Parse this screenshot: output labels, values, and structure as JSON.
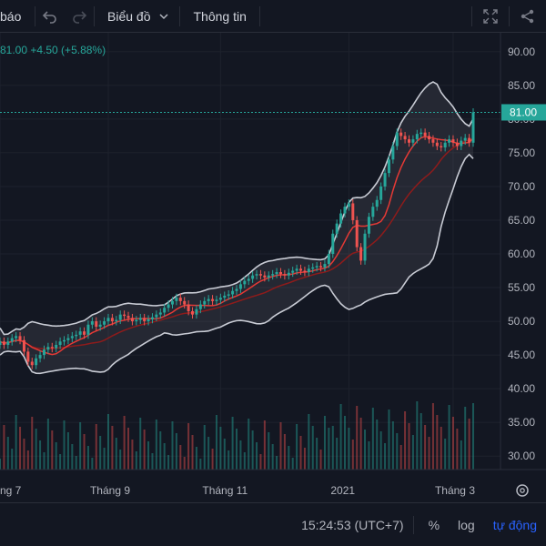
{
  "toolbar": {
    "partial_label": "báo",
    "chart_label": "Biểu đồ",
    "info_label": "Thông tin",
    "icons": [
      "undo-icon",
      "redo-icon",
      "chevron-down-icon",
      "fullscreen-icon",
      "share-icon"
    ]
  },
  "legend": {
    "text": "81.00  +4.50 (+5.88%)"
  },
  "current_price": "81.00",
  "footer": {
    "time": "15:24:53 (UTC+7)",
    "percent": "%",
    "log": "log",
    "auto": "tự động"
  },
  "colors": {
    "up": "#26a69a",
    "down": "#ef5350",
    "ma_fast": "#e53935",
    "ma_slow": "#8e1b1b",
    "band": "#c8cbd4",
    "background": "#131722",
    "accent": "#2962ff"
  },
  "chart_data": {
    "type": "candlestick",
    "ylim": [
      28,
      92
    ],
    "y_ticks": [
      "90.00",
      "85.00",
      "80.00",
      "75.00",
      "70.00",
      "65.00",
      "60.00",
      "55.00",
      "50.00",
      "45.00",
      "40.00",
      "35.00",
      "30.00"
    ],
    "y_tick_values": [
      90,
      85,
      80,
      75,
      70,
      65,
      60,
      55,
      50,
      45,
      40,
      35,
      30
    ],
    "x_ticks": [
      "ng 7",
      "Tháng 9",
      "Tháng 11",
      "2021",
      "Tháng 3"
    ],
    "x_tick_index": [
      0,
      27,
      55,
      87,
      113
    ],
    "close_prices": [
      47.0,
      46.5,
      47.0,
      47.5,
      47.8,
      47.2,
      45.5,
      44.0,
      43.5,
      44.5,
      45.0,
      45.8,
      46.2,
      46.0,
      46.5,
      47.0,
      47.2,
      47.5,
      47.8,
      48.0,
      48.5,
      48.0,
      49.5,
      50.0,
      49.2,
      49.5,
      50.0,
      50.5,
      50.0,
      50.2,
      51.0,
      50.8,
      50.5,
      50.0,
      50.2,
      50.5,
      50.0,
      50.3,
      50.6,
      51.0,
      51.3,
      52.0,
      52.5,
      53.0,
      53.5,
      53.0,
      52.5,
      51.5,
      51.0,
      51.8,
      52.5,
      53.0,
      53.3,
      53.0,
      53.2,
      53.5,
      53.8,
      54.0,
      54.5,
      54.8,
      55.5,
      56.0,
      56.3,
      56.8,
      57.0,
      56.8,
      56.5,
      56.8,
      57.0,
      57.3,
      57.0,
      56.8,
      57.2,
      57.5,
      57.8,
      57.5,
      57.3,
      57.8,
      58.0,
      58.2,
      58.0,
      58.5,
      60.0,
      63.0,
      64.5,
      66.0,
      67.0,
      67.5,
      65.0,
      61.0,
      59.0,
      63.0,
      65.5,
      67.0,
      68.0,
      70.0,
      72.0,
      74.0,
      76.0,
      78.0,
      77.5,
      77.0,
      76.5,
      77.0,
      77.8,
      78.0,
      77.5,
      77.0,
      76.5,
      76.0,
      75.8,
      76.5,
      77.0,
      76.5,
      76.0,
      76.8,
      77.2,
      76.5,
      81.0
    ],
    "volume_note": "volume bars at bottom (unitless)"
  }
}
